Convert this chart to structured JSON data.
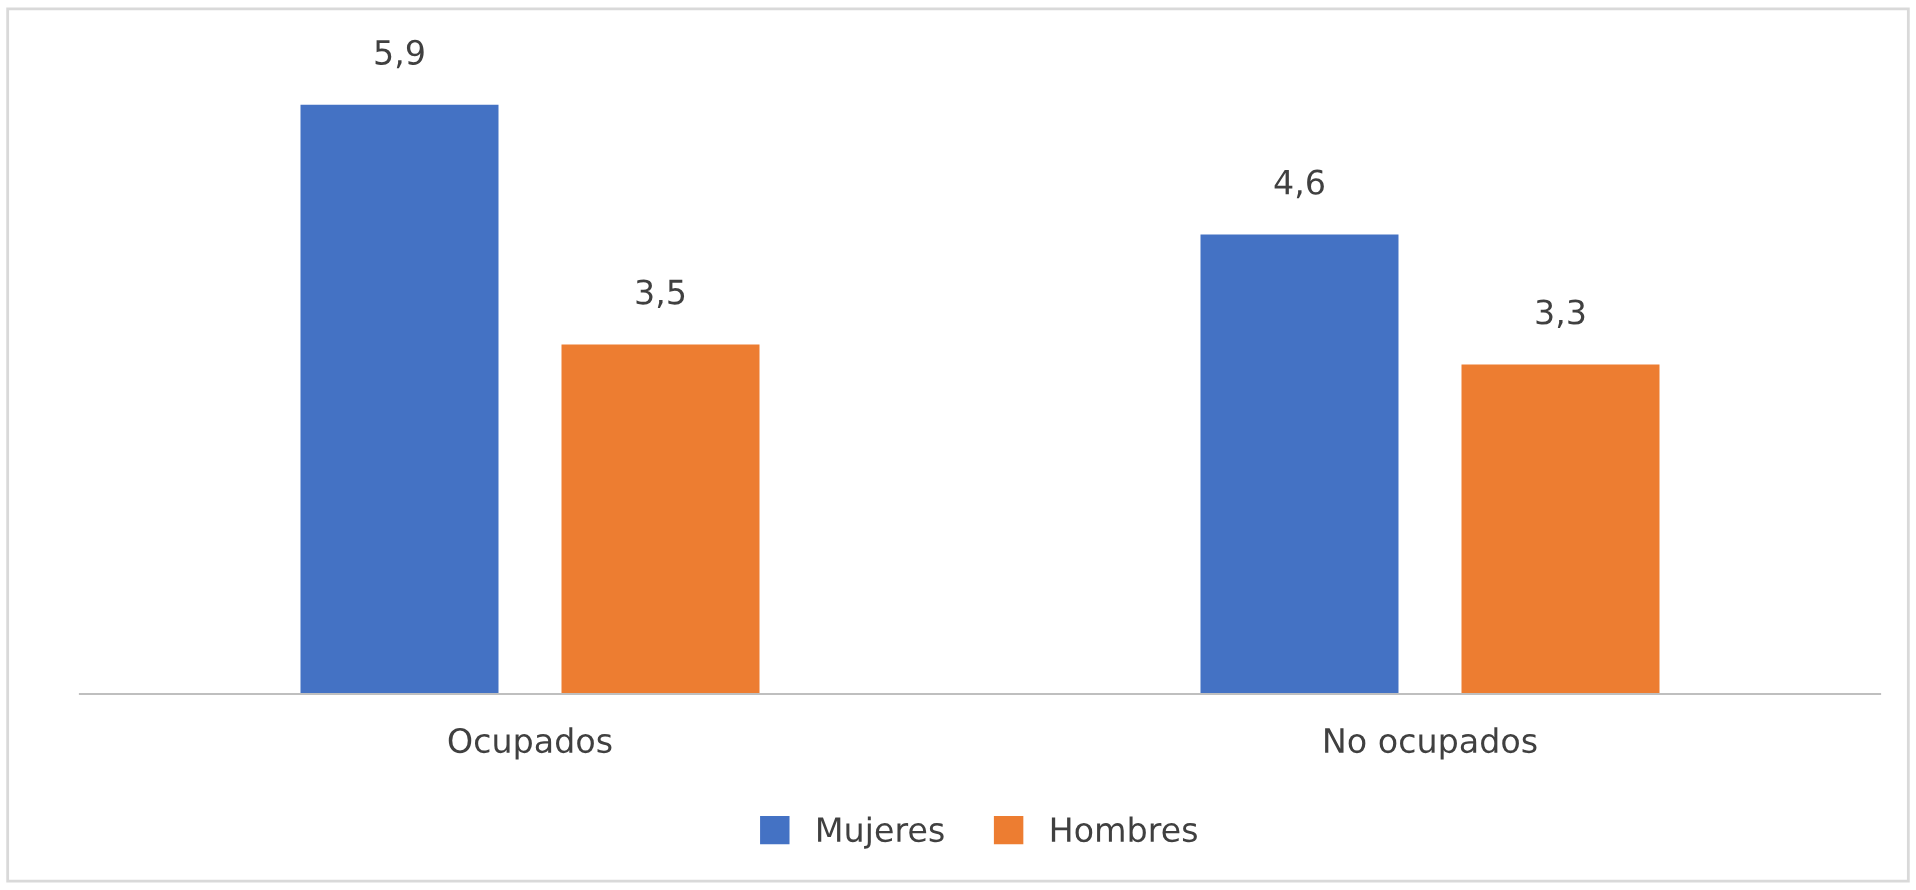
{
  "chart_data": {
    "type": "bar",
    "categories": [
      "Ocupados",
      "No ocupados"
    ],
    "series": [
      {
        "name": "Mujeres",
        "color": "#4472c4",
        "values": [
          5.9,
          4.6
        ],
        "value_labels": [
          "5,9",
          "4,6"
        ]
      },
      {
        "name": "Hombres",
        "color": "#ed7d31",
        "values": [
          3.5,
          3.3
        ],
        "value_labels": [
          "3,5",
          "3,3"
        ]
      }
    ],
    "legend": "bottom",
    "grid": false,
    "tick_labels": "x"
  }
}
